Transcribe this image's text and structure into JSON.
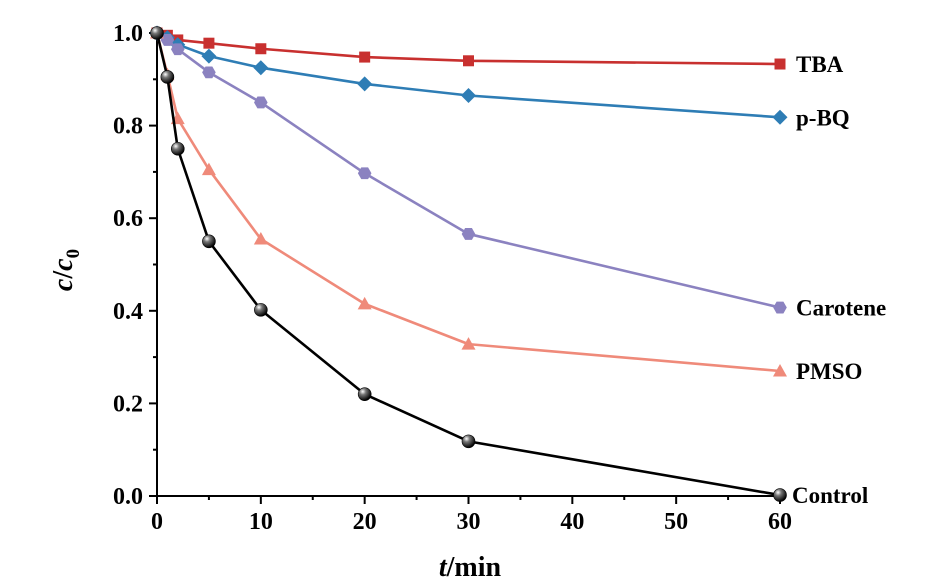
{
  "chart_data": {
    "type": "line",
    "title": "",
    "xlabel_italic": "t",
    "xlabel_rest": "/min",
    "ylabel_c": "c",
    "ylabel_slash": "/",
    "ylabel_c0": "c",
    "ylabel_sub": "0",
    "xlim": [
      0,
      60
    ],
    "ylim": [
      0,
      1.0
    ],
    "xticks": [
      0,
      10,
      20,
      30,
      40,
      50,
      60
    ],
    "yticks": [
      0.0,
      0.2,
      0.4,
      0.6,
      0.8,
      1.0
    ],
    "xtick_labels": [
      "0",
      "10",
      "20",
      "30",
      "40",
      "50",
      "60"
    ],
    "ytick_labels": [
      "0.0",
      "0.2",
      "0.4",
      "0.6",
      "0.8",
      "1.0"
    ],
    "grid": false,
    "series": [
      {
        "name": "TBA",
        "color": "#c8302f",
        "marker": "square",
        "x": [
          0,
          1,
          2,
          5,
          10,
          20,
          30,
          60
        ],
        "y": [
          1.0,
          0.995,
          0.985,
          0.978,
          0.966,
          0.948,
          0.94,
          0.933
        ]
      },
      {
        "name": "p-BQ",
        "color": "#2e7db5",
        "marker": "diamond",
        "x": [
          0,
          1,
          2,
          5,
          10,
          20,
          30,
          60
        ],
        "y": [
          1.0,
          0.99,
          0.975,
          0.95,
          0.925,
          0.89,
          0.865,
          0.818
        ]
      },
      {
        "name": "Carotene",
        "color": "#8b82c0",
        "marker": "hexagon",
        "x": [
          0,
          1,
          2,
          5,
          10,
          20,
          30,
          60
        ],
        "y": [
          1.0,
          0.985,
          0.965,
          0.915,
          0.85,
          0.697,
          0.566,
          0.407
        ]
      },
      {
        "name": "PMSO",
        "color": "#ef8a7a",
        "marker": "triangle",
        "x": [
          0,
          1,
          2,
          5,
          10,
          20,
          30,
          60
        ],
        "y": [
          1.0,
          0.91,
          0.815,
          0.705,
          0.555,
          0.415,
          0.328,
          0.27
        ]
      },
      {
        "name": "Control",
        "color": "#000000",
        "marker": "sphere",
        "x": [
          0,
          1,
          2,
          5,
          10,
          20,
          30,
          60
        ],
        "y": [
          1.0,
          0.905,
          0.75,
          0.55,
          0.402,
          0.22,
          0.118,
          0.002
        ]
      }
    ]
  }
}
